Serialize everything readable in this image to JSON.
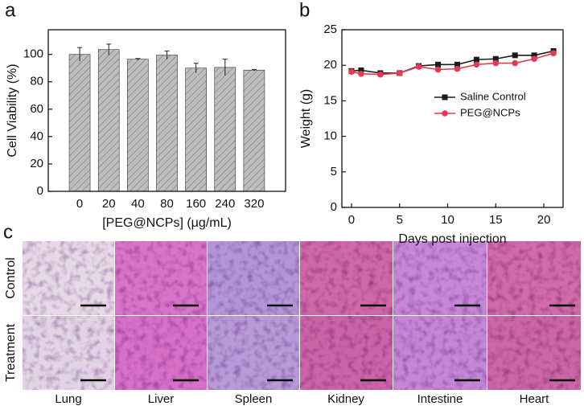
{
  "panel_labels": [
    "a",
    "b",
    "c"
  ],
  "chart_data": [
    {
      "type": "bar",
      "xlabel": "[PEG@NCPs] (μg/mL)",
      "ylabel": "Cell Viability (%)",
      "categories": [
        "0",
        "20",
        "40",
        "80",
        "160",
        "240",
        "320"
      ],
      "values": [
        100,
        103.5,
        96.5,
        99.5,
        90,
        90.5,
        88.5
      ],
      "errors": [
        5,
        4,
        0.5,
        3,
        3.5,
        6,
        0.5
      ],
      "color": "#bdbdbd",
      "ylim": [
        0,
        118
      ],
      "yticks": [
        0,
        20,
        40,
        60,
        80,
        100
      ]
    },
    {
      "type": "line",
      "xlabel": "Days post injection",
      "ylabel": "Weight (g)",
      "x": [
        0,
        1,
        3,
        5,
        7,
        9,
        11,
        13,
        15,
        17,
        19,
        21
      ],
      "series": [
        {
          "name": "Saline Control",
          "color": "#1a1a1a",
          "marker": "square",
          "values": [
            19.2,
            19.3,
            18.9,
            18.9,
            19.9,
            20.1,
            20.1,
            20.8,
            20.9,
            21.4,
            21.4,
            22.0
          ]
        },
        {
          "name": "PEG@NCPs",
          "color": "#e8384f",
          "marker": "circle",
          "values": [
            19.1,
            18.8,
            18.7,
            18.9,
            19.8,
            19.4,
            19.5,
            20.1,
            20.3,
            20.3,
            20.9,
            21.7
          ]
        }
      ],
      "xlim": [
        -1,
        22
      ],
      "ylim": [
        0,
        25
      ],
      "xticks": [
        0,
        5,
        10,
        15,
        20
      ],
      "yticks": [
        0,
        5,
        10,
        15,
        20,
        25
      ],
      "legend": "right"
    }
  ],
  "histology": {
    "rows": [
      "Control",
      "Treatment"
    ],
    "columns": [
      "Lung",
      "Liver",
      "Spleen",
      "Kidney",
      "Intestine",
      "Heart"
    ]
  }
}
